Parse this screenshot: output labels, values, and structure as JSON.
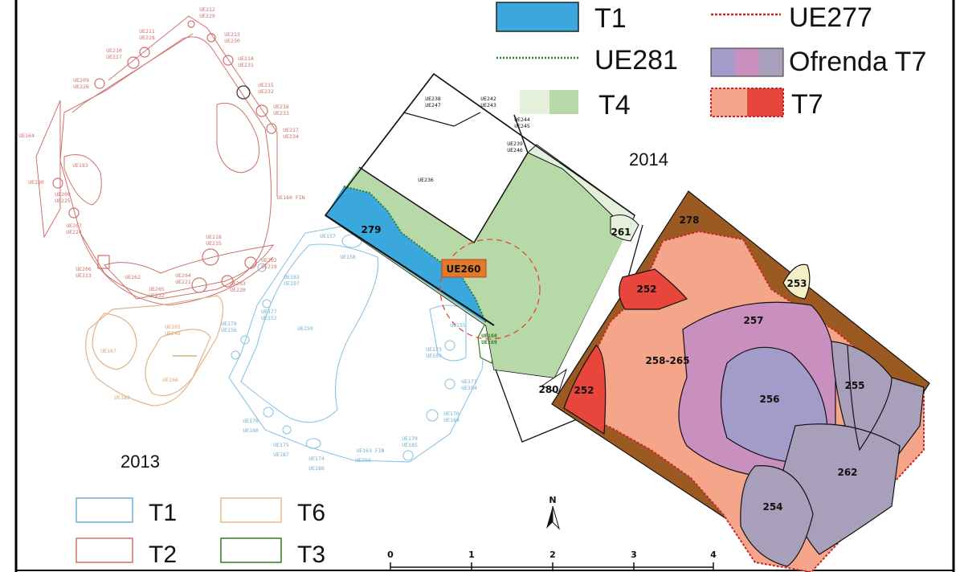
{
  "legend_2014": [
    {
      "label": "T1",
      "swatch": "fill",
      "colors": [
        "#3aa8dc"
      ]
    },
    {
      "label": "UE281",
      "swatch": "dotted-line",
      "colors": [
        "#2e7d32"
      ]
    },
    {
      "label": "T4",
      "swatch": "fill",
      "colors": [
        "#e4f0dc",
        "#b7d9a8"
      ]
    },
    {
      "label": "UE277",
      "swatch": "dotted-line",
      "colors": [
        "#c62828"
      ]
    },
    {
      "label": "Ofrenda T7",
      "swatch": "fill",
      "colors": [
        "#a39bc9",
        "#c98fbf",
        "#a8a0bb"
      ]
    },
    {
      "label": "T7",
      "swatch": "fill",
      "colors": [
        "#f4a58a",
        "#e8453c"
      ]
    }
  ],
  "legend_2013": [
    {
      "label": "T1",
      "color": "#6aaed6"
    },
    {
      "label": "T2",
      "color": "#d0706a"
    },
    {
      "label": "T6",
      "color": "#e8b98a"
    },
    {
      "label": "T3",
      "color": "#2e7d1a"
    }
  ],
  "years": {
    "y2014": "2014",
    "y2013": "2013"
  },
  "units_2014": {
    "u279": "279",
    "u261": "261",
    "u278": "278",
    "u252a": "252",
    "u252b": "252",
    "u253": "253",
    "u257": "257",
    "u258": "258-265",
    "u256": "256",
    "u255": "255",
    "u262": "262",
    "u254": "254",
    "u280": "280",
    "ue260": "UE260"
  },
  "labels_2014_black": [
    "UE238",
    "UE247",
    "UE242",
    "UE243",
    "UE244",
    "UE245",
    "UE239",
    "UE246",
    "UE236"
  ],
  "labels_t2": [
    "UE212",
    "UE229",
    "UE211",
    "UE228",
    "UE213",
    "UE230",
    "UE210",
    "UE227",
    "UE214",
    "UE231",
    "UE209",
    "UE226",
    "UE215",
    "UE232",
    "UE216",
    "UE233",
    "UE217",
    "UE234",
    "UE164",
    "UE183",
    "UE280",
    "UE208",
    "UE225",
    "UE207",
    "UE224",
    "UE160 FIN",
    "UE218",
    "UE235",
    "UE206",
    "UE223",
    "UE162",
    "UE204",
    "UE221",
    "UE205",
    "UE222",
    "UE203",
    "UE220",
    "UE202",
    "UE219"
  ],
  "labels_t1": [
    "UE157",
    "UE158",
    "UE182",
    "UE197",
    "UE177",
    "UE152",
    "UE178",
    "UE156",
    "UE159",
    "UE155",
    "UE173",
    "UE193",
    "UE171",
    "UE194",
    "UE170",
    "UE184",
    "UE176",
    "UE180",
    "UE175",
    "UE187",
    "UE174",
    "UE186",
    "UE163 FIN",
    "UE259",
    "UE179",
    "UE185"
  ],
  "labels_t3": [
    "UE168",
    "UE169"
  ],
  "labels_t6": [
    "UE165",
    "UE248",
    "UE167",
    "UE166",
    "UE182"
  ],
  "north": "N",
  "scale_ticks": [
    "0",
    "1",
    "2",
    "3",
    "4"
  ],
  "colors": {
    "t1": "#3aa8dc",
    "t4_light": "#e4f0dc",
    "t4": "#b7d9a8",
    "t7": "#f4a58a",
    "t7_red": "#e8453c",
    "t7_border": "#9a5a22",
    "ofrenda_pink": "#c98fbf",
    "ofrenda_blue": "#a39bc9",
    "ofrenda_grey": "#a8a0bb",
    "ue260_box": "#e07a2a",
    "ue253": "#f3f0c8"
  }
}
